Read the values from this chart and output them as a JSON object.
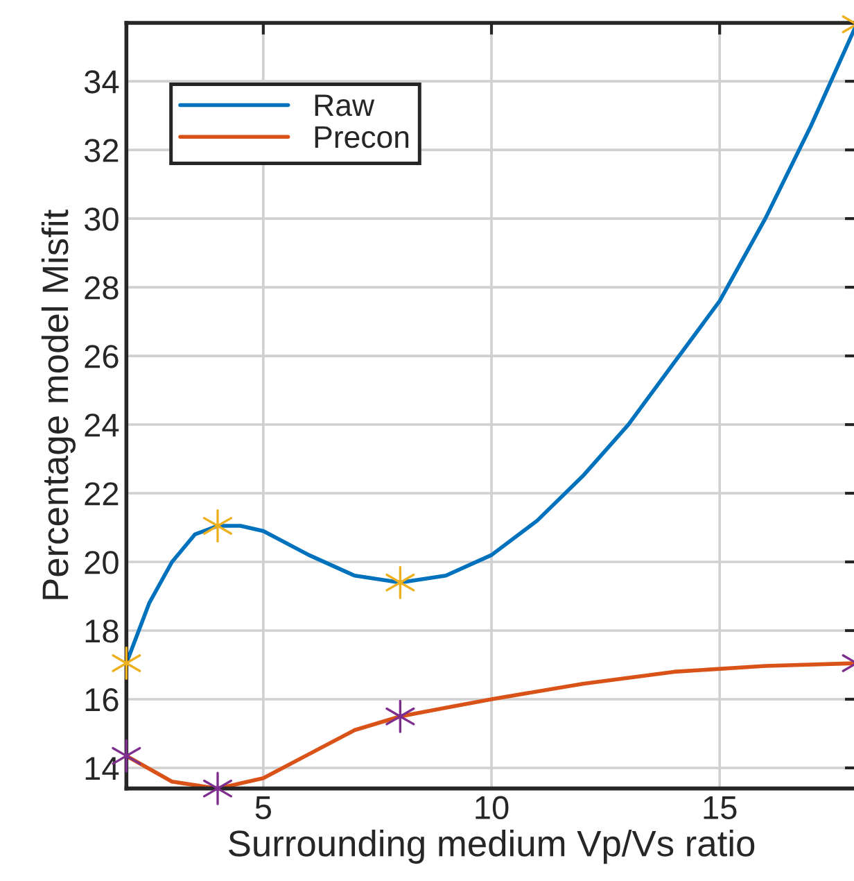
{
  "chart_data": {
    "type": "line",
    "xlabel": "Surrounding medium Vp/Vs ratio",
    "ylabel": "Percentage model Misfit",
    "xlim": [
      2,
      18
    ],
    "xticks": [
      5,
      10,
      15
    ],
    "ylim": [
      13.4,
      35.7
    ],
    "yticks": [
      14,
      16,
      18,
      20,
      22,
      24,
      26,
      28,
      30,
      32,
      34
    ],
    "grid": true,
    "legend": "top left",
    "series": [
      {
        "name": "Raw",
        "color": "#0072bd",
        "x": [
          2,
          2.5,
          3,
          3.5,
          4,
          4.5,
          5,
          6,
          7,
          8,
          9,
          10,
          11,
          12,
          13,
          14,
          15,
          16,
          17,
          18
        ],
        "values": [
          17.05,
          18.8,
          20.0,
          20.8,
          21.05,
          21.05,
          20.9,
          20.2,
          19.6,
          19.4,
          19.6,
          20.2,
          21.2,
          22.5,
          24.0,
          25.8,
          27.6,
          30.0,
          32.7,
          35.66
        ]
      },
      {
        "name": "Precon",
        "color": "#d95319",
        "x": [
          2,
          3,
          4,
          5,
          6,
          7,
          8,
          9,
          10,
          12,
          14,
          16,
          18
        ],
        "values": [
          14.35,
          13.6,
          13.4,
          13.7,
          14.4,
          15.1,
          15.5,
          15.75,
          16.0,
          16.45,
          16.8,
          16.97,
          17.05
        ]
      },
      {
        "type": "scatter",
        "marker": "cross",
        "color": "#edb120",
        "x": [
          2,
          4,
          8,
          18
        ],
        "values": [
          17.05,
          21.05,
          19.4,
          35.66
        ]
      },
      {
        "type": "scatter",
        "marker": "cross",
        "color": "#7e2f8e",
        "x": [
          2,
          4,
          8,
          18
        ],
        "values": [
          14.35,
          13.4,
          15.5,
          17.05
        ]
      }
    ]
  }
}
